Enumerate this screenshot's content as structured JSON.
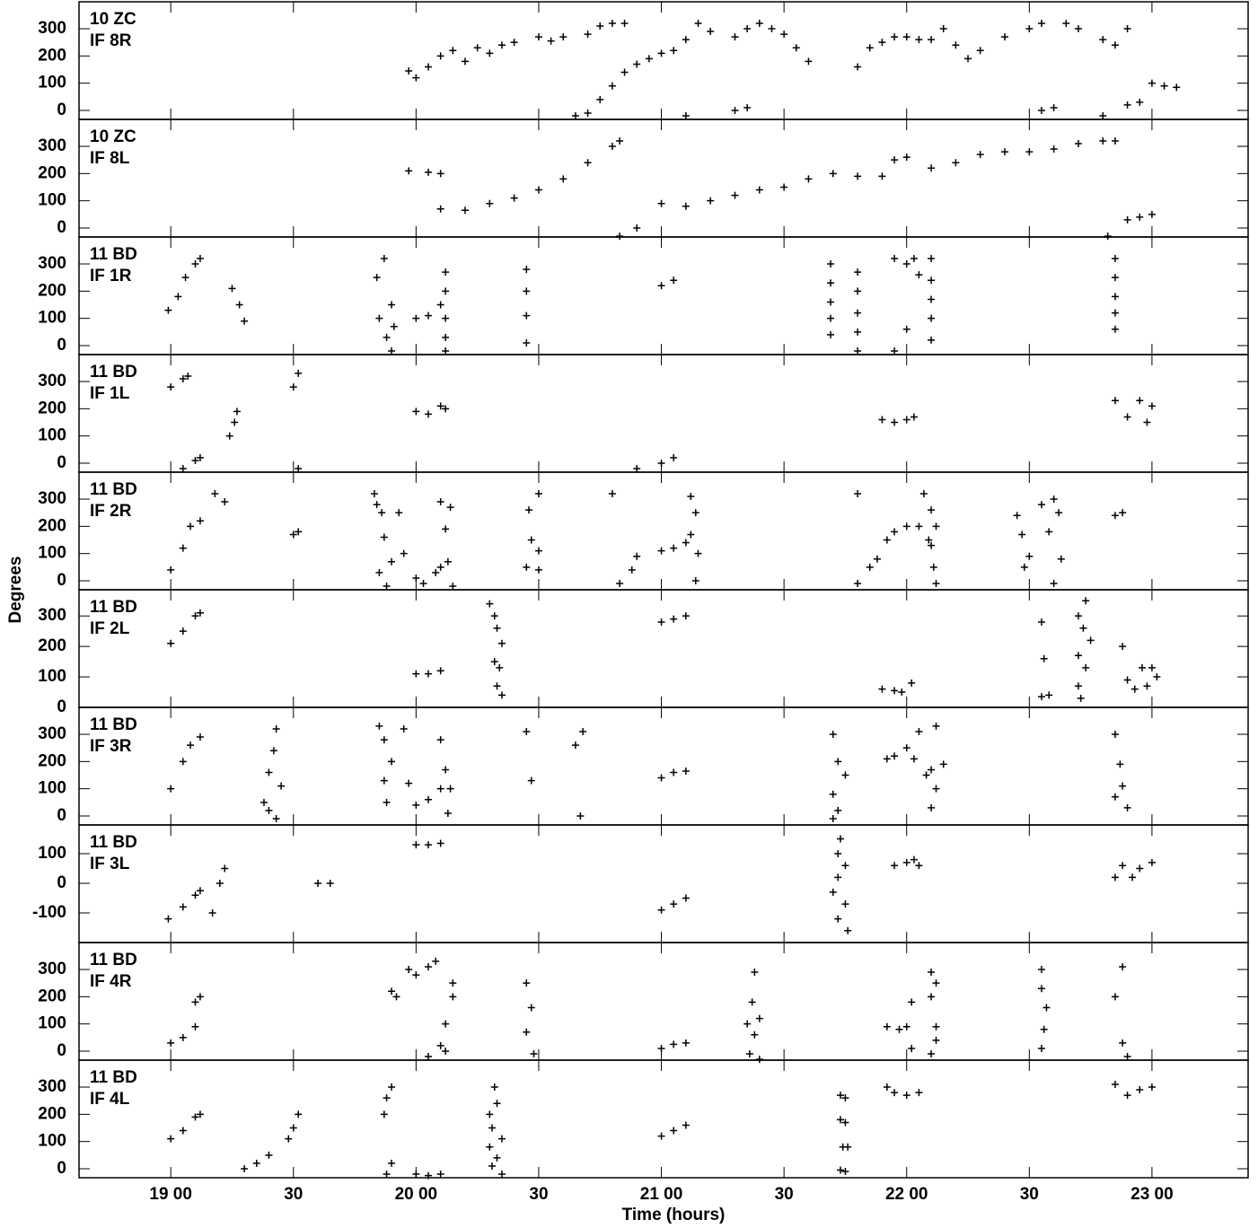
{
  "ylabel": "Degrees",
  "chart_data": [
    {
      "type": "scatter",
      "annotations": [
        "10 ZC",
        "IF 8R"
      ],
      "xlim": [
        18.626,
        23.392
      ],
      "ylim": [
        -33,
        399
      ],
      "yticks": [
        0,
        100,
        200,
        300
      ],
      "x": [
        19.97,
        20.0,
        20.05,
        20.1,
        20.15,
        20.2,
        20.25,
        20.3,
        20.35,
        20.4,
        20.5,
        20.55,
        20.6,
        20.7,
        20.75,
        20.8,
        20.85,
        20.65,
        20.7,
        20.75,
        20.8,
        20.85,
        20.9,
        20.95,
        21.0,
        21.05,
        21.1,
        21.15,
        21.2,
        21.3,
        21.35,
        21.4,
        21.45,
        21.5,
        21.55,
        21.6,
        21.8,
        21.85,
        21.9,
        21.95,
        22.0,
        22.05,
        22.1,
        22.15,
        22.2,
        22.25,
        22.3,
        22.4,
        22.5,
        22.55,
        22.65,
        22.7,
        22.8,
        22.85,
        22.9,
        21.1,
        21.3,
        21.35,
        22.55,
        22.6,
        22.8,
        22.9,
        22.95,
        23.0,
        23.05,
        23.1
      ],
      "values": [
        145,
        120,
        160,
        200,
        220,
        180,
        230,
        210,
        240,
        250,
        270,
        255,
        270,
        280,
        310,
        320,
        320,
        -20,
        -10,
        40,
        90,
        140,
        170,
        190,
        210,
        220,
        260,
        320,
        290,
        270,
        300,
        320,
        300,
        280,
        230,
        180,
        160,
        230,
        250,
        270,
        270,
        260,
        260,
        300,
        240,
        190,
        220,
        270,
        300,
        320,
        320,
        300,
        260,
        240,
        300,
        -20,
        0,
        10,
        0,
        10,
        -20,
        20,
        30,
        100,
        90,
        85
      ]
    },
    {
      "type": "scatter",
      "annotations": [
        "10 ZC",
        "IF 8L"
      ],
      "xlim": [
        18.626,
        23.392
      ],
      "ylim": [
        -33,
        399
      ],
      "yticks": [
        0,
        100,
        200,
        300
      ],
      "x": [
        19.97,
        20.05,
        20.1,
        20.1,
        20.2,
        20.3,
        20.4,
        20.5,
        20.6,
        20.7,
        20.8,
        20.83,
        20.83,
        20.9,
        21.0,
        21.1,
        21.2,
        21.3,
        21.4,
        21.5,
        21.6,
        21.7,
        21.8,
        21.9,
        21.95,
        22.0,
        22.1,
        22.2,
        22.3,
        22.4,
        22.5,
        22.6,
        22.7,
        22.8,
        22.85,
        22.82,
        22.9,
        22.95,
        23.0
      ],
      "values": [
        210,
        205,
        200,
        70,
        65,
        90,
        110,
        140,
        180,
        240,
        300,
        320,
        -30,
        0,
        90,
        80,
        100,
        120,
        140,
        150,
        180,
        200,
        190,
        190,
        250,
        260,
        220,
        240,
        270,
        280,
        280,
        290,
        310,
        320,
        320,
        -30,
        30,
        40,
        50
      ]
    },
    {
      "type": "scatter",
      "annotations": [
        "11 BD",
        "IF 1R"
      ],
      "xlim": [
        18.626,
        23.392
      ],
      "ylim": [
        -33,
        399
      ],
      "yticks": [
        0,
        100,
        200,
        300
      ],
      "x": [
        18.99,
        19.03,
        19.06,
        19.1,
        19.12,
        19.25,
        19.28,
        19.3,
        19.85,
        19.84,
        19.87,
        19.9,
        19.88,
        19.9,
        19.91,
        20.0,
        20.05,
        20.1,
        20.12,
        20.12,
        20.12,
        20.12,
        20.12,
        20.45,
        20.45,
        20.45,
        20.45,
        21.0,
        21.05,
        21.69,
        21.69,
        21.69,
        21.69,
        21.69,
        21.8,
        21.8,
        21.8,
        21.8,
        21.8,
        21.95,
        21.95,
        22.0,
        22.03,
        22.05,
        22.0,
        22.1,
        22.1,
        22.1,
        22.1,
        22.1,
        22.85,
        22.85,
        22.85,
        22.85,
        22.85
      ],
      "values": [
        130,
        180,
        250,
        300,
        320,
        210,
        150,
        90,
        100,
        250,
        320,
        150,
        30,
        -20,
        70,
        100,
        110,
        150,
        270,
        200,
        100,
        30,
        -20,
        280,
        200,
        110,
        10,
        220,
        240,
        40,
        100,
        160,
        230,
        300,
        270,
        200,
        120,
        50,
        -20,
        -20,
        320,
        300,
        320,
        260,
        60,
        320,
        240,
        170,
        100,
        20,
        320,
        250,
        180,
        120,
        60
      ]
    },
    {
      "type": "scatter",
      "annotations": [
        "11 BD",
        "IF 1L"
      ],
      "xlim": [
        18.626,
        23.392
      ],
      "ylim": [
        -33,
        399
      ],
      "yticks": [
        0,
        100,
        200,
        300
      ],
      "x": [
        19.0,
        19.05,
        19.07,
        19.05,
        19.1,
        19.12,
        19.24,
        19.26,
        19.27,
        19.5,
        19.52,
        19.52,
        20.0,
        20.05,
        20.1,
        20.12,
        20.9,
        21.0,
        21.05,
        21.9,
        21.95,
        22.0,
        22.03,
        22.85,
        22.9,
        22.95,
        22.98,
        23.0
      ],
      "values": [
        280,
        310,
        320,
        -20,
        10,
        20,
        100,
        150,
        190,
        280,
        330,
        -20,
        190,
        180,
        210,
        200,
        -20,
        0,
        20,
        160,
        150,
        160,
        170,
        230,
        170,
        230,
        150,
        210
      ]
    },
    {
      "type": "scatter",
      "annotations": [
        "11 BD",
        "IF 2R"
      ],
      "xlim": [
        18.626,
        23.392
      ],
      "ylim": [
        -33,
        399
      ],
      "yticks": [
        0,
        100,
        200,
        300
      ],
      "x": [
        19.0,
        19.05,
        19.08,
        19.12,
        19.18,
        19.22,
        19.5,
        19.52,
        19.83,
        19.84,
        19.86,
        19.87,
        19.85,
        19.88,
        19.9,
        19.93,
        19.95,
        20.0,
        20.03,
        20.08,
        20.1,
        20.1,
        20.12,
        20.14,
        20.13,
        20.15,
        20.46,
        20.47,
        20.45,
        20.5,
        20.5,
        20.5,
        20.8,
        20.83,
        20.88,
        20.9,
        21.0,
        21.05,
        21.1,
        21.12,
        21.14,
        21.12,
        21.15,
        21.14,
        21.8,
        21.8,
        21.85,
        21.88,
        21.92,
        21.95,
        22.0,
        22.05,
        22.07,
        22.1,
        22.09,
        22.12,
        22.1,
        22.11,
        22.12,
        22.45,
        22.47,
        22.5,
        22.48,
        22.55,
        22.6,
        22.62,
        22.58,
        22.63,
        22.6,
        22.85,
        22.88
      ],
      "values": [
        40,
        120,
        200,
        220,
        320,
        290,
        170,
        180,
        320,
        280,
        250,
        160,
        30,
        -20,
        70,
        250,
        100,
        10,
        -10,
        30,
        50,
        290,
        190,
        270,
        70,
        -20,
        260,
        150,
        50,
        320,
        110,
        40,
        320,
        -10,
        40,
        90,
        110,
        120,
        140,
        310,
        250,
        170,
        100,
        0,
        320,
        -10,
        50,
        80,
        150,
        180,
        200,
        200,
        320,
        260,
        150,
        200,
        130,
        50,
        -10,
        240,
        170,
        90,
        50,
        280,
        300,
        250,
        180,
        80,
        -10,
        240,
        250
      ]
    },
    {
      "type": "scatter",
      "annotations": [
        "11 BD",
        "IF 2L"
      ],
      "xlim": [
        18.626,
        23.392
      ],
      "ylim": [
        0,
        386
      ],
      "yticks": [
        0,
        100,
        200,
        300
      ],
      "x": [
        19.0,
        19.05,
        19.1,
        19.12,
        20.3,
        20.32,
        20.33,
        20.35,
        20.32,
        20.34,
        20.33,
        20.35,
        20.0,
        20.05,
        20.1,
        21.0,
        21.05,
        21.1,
        21.9,
        21.95,
        21.98,
        22.02,
        22.55,
        22.56,
        22.58,
        22.55,
        22.7,
        22.73,
        22.72,
        22.75,
        22.7,
        22.73,
        22.7,
        22.71,
        22.88,
        22.9,
        22.93,
        22.96,
        22.98,
        23.0,
        23.02
      ],
      "values": [
        210,
        250,
        300,
        310,
        340,
        300,
        260,
        210,
        150,
        130,
        70,
        40,
        110,
        110,
        120,
        280,
        290,
        300,
        60,
        55,
        50,
        80,
        280,
        160,
        40,
        35,
        300,
        350,
        260,
        220,
        170,
        130,
        70,
        30,
        200,
        90,
        60,
        130,
        70,
        130,
        100
      ]
    },
    {
      "type": "scatter",
      "annotations": [
        "11 BD",
        "IF 3R"
      ],
      "xlim": [
        18.626,
        23.392
      ],
      "ylim": [
        -33,
        399
      ],
      "yticks": [
        0,
        100,
        200,
        300
      ],
      "x": [
        19.0,
        19.05,
        19.08,
        19.12,
        19.38,
        19.4,
        19.42,
        19.43,
        19.4,
        19.45,
        19.43,
        19.85,
        19.87,
        19.9,
        19.87,
        19.88,
        19.95,
        19.97,
        20.0,
        20.05,
        20.1,
        20.1,
        20.12,
        20.13,
        20.14,
        20.45,
        20.47,
        20.65,
        20.68,
        20.67,
        21.0,
        21.05,
        21.1,
        21.7,
        21.72,
        21.7,
        21.75,
        21.72,
        21.7,
        21.92,
        21.95,
        22.0,
        22.03,
        22.05,
        22.08,
        22.1,
        22.1,
        22.12,
        22.15,
        22.12,
        22.85,
        22.87,
        22.88,
        22.9,
        22.85
      ],
      "values": [
        100,
        200,
        260,
        290,
        50,
        20,
        240,
        320,
        160,
        110,
        -10,
        330,
        280,
        200,
        130,
        50,
        320,
        120,
        40,
        60,
        100,
        280,
        170,
        10,
        100,
        310,
        130,
        260,
        310,
        0,
        140,
        160,
        165,
        300,
        200,
        80,
        150,
        20,
        -10,
        210,
        220,
        250,
        210,
        310,
        150,
        170,
        30,
        100,
        190,
        330,
        300,
        190,
        110,
        30,
        70
      ]
    },
    {
      "type": "scatter",
      "annotations": [
        "11 BD",
        "IF 3L"
      ],
      "xlim": [
        18.626,
        23.392
      ],
      "ylim": [
        -200,
        197
      ],
      "yticks": [
        -100,
        0,
        100
      ],
      "x": [
        18.99,
        19.05,
        19.1,
        19.12,
        19.17,
        19.2,
        19.22,
        19.6,
        19.65,
        20.0,
        20.05,
        20.1,
        21.0,
        21.05,
        21.1,
        21.73,
        21.72,
        21.75,
        21.72,
        21.7,
        21.75,
        21.72,
        21.76,
        21.95,
        22.0,
        22.03,
        22.05,
        22.85,
        22.88,
        22.92,
        22.95,
        23.0
      ],
      "values": [
        -120,
        -80,
        -40,
        -25,
        -100,
        0,
        50,
        0,
        0,
        130,
        130,
        135,
        -90,
        -70,
        -50,
        150,
        100,
        60,
        20,
        -30,
        -70,
        -120,
        -160,
        60,
        70,
        80,
        60,
        20,
        60,
        20,
        50,
        70
      ]
    },
    {
      "type": "scatter",
      "annotations": [
        "11 BD",
        "IF 4R"
      ],
      "xlim": [
        18.626,
        23.392
      ],
      "ylim": [
        -33,
        399
      ],
      "yticks": [
        0,
        100,
        200,
        300
      ],
      "x": [
        19.0,
        19.05,
        19.1,
        19.1,
        19.12,
        19.9,
        19.92,
        19.97,
        20.0,
        20.05,
        20.08,
        20.05,
        20.1,
        20.12,
        20.15,
        20.15,
        20.12,
        20.45,
        20.47,
        20.45,
        20.48,
        21.0,
        21.05,
        21.1,
        21.35,
        21.37,
        21.38,
        21.36,
        21.4,
        21.38,
        21.4,
        21.92,
        21.97,
        22.0,
        22.02,
        22.02,
        22.1,
        22.12,
        22.1,
        22.12,
        22.12,
        22.1,
        22.55,
        22.55,
        22.57,
        22.56,
        22.55,
        22.85,
        22.88,
        22.88,
        22.9
      ],
      "values": [
        30,
        50,
        90,
        180,
        200,
        220,
        200,
        300,
        280,
        310,
        330,
        -20,
        20,
        100,
        200,
        250,
        0,
        250,
        160,
        70,
        -10,
        10,
        25,
        30,
        100,
        180,
        60,
        -10,
        120,
        290,
        -30,
        90,
        80,
        90,
        180,
        10,
        290,
        250,
        200,
        90,
        40,
        -10,
        300,
        230,
        160,
        80,
        10,
        200,
        310,
        30,
        -20
      ]
    },
    {
      "type": "scatter",
      "annotations": [
        "11 BD",
        "IF 4L"
      ],
      "xlim": [
        18.626,
        23.392
      ],
      "ylim": [
        -33,
        399
      ],
      "yticks": [
        0,
        100,
        200,
        300
      ],
      "xlabel": "Time (hours)",
      "xticks": [
        {
          "value": 19,
          "label": "19 00"
        },
        {
          "value": 19.5,
          "label": "30"
        },
        {
          "value": 20,
          "label": "20 00"
        },
        {
          "value": 20.5,
          "label": "30"
        },
        {
          "value": 21,
          "label": "21 00"
        },
        {
          "value": 21.5,
          "label": "30"
        },
        {
          "value": 22,
          "label": "22 00"
        },
        {
          "value": 22.5,
          "label": "30"
        },
        {
          "value": 23,
          "label": "23 00"
        }
      ],
      "x": [
        19.0,
        19.05,
        19.1,
        19.12,
        19.3,
        19.35,
        19.4,
        19.48,
        19.5,
        19.52,
        19.87,
        19.88,
        19.9,
        19.88,
        19.9,
        20.0,
        20.05,
        20.1,
        20.32,
        20.3,
        20.33,
        20.31,
        20.35,
        20.3,
        20.33,
        20.31,
        20.35,
        21.0,
        21.05,
        21.1,
        21.73,
        21.75,
        21.73,
        21.75,
        21.74,
        21.76,
        21.73,
        21.75,
        21.92,
        21.95,
        22.0,
        22.05,
        22.85,
        22.9,
        22.95,
        23.0
      ],
      "values": [
        110,
        140,
        190,
        200,
        0,
        20,
        50,
        110,
        150,
        200,
        200,
        260,
        300,
        -20,
        20,
        -20,
        -25,
        -20,
        300,
        200,
        240,
        150,
        110,
        80,
        40,
        10,
        -20,
        120,
        140,
        160,
        270,
        260,
        180,
        170,
        80,
        80,
        -5,
        -10,
        300,
        280,
        270,
        280,
        310,
        270,
        290,
        300
      ]
    }
  ]
}
